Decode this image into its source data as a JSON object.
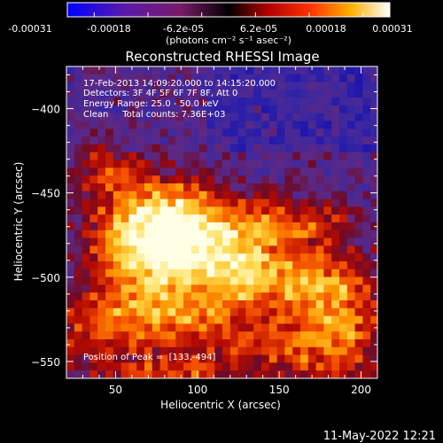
{
  "colorbar": {
    "tick_labels": [
      "-0.00031",
      "-0.00018",
      "-6.2e-05",
      "6.2e-05",
      "0.00018",
      "0.00031"
    ],
    "range": [
      -0.00031,
      0.00031
    ],
    "units": "(photons cm⁻² s⁻¹ asec⁻²)"
  },
  "chart_data": {
    "type": "heatmap",
    "title": "Reconstructed RHESSI Image",
    "xlabel": "Heliocentric X (arcsec)",
    "ylabel": "Heliocentric Y (arcsec)",
    "xlim": [
      20,
      210
    ],
    "ylim": [
      -560,
      -375
    ],
    "xticks": [
      50,
      100,
      150,
      200
    ],
    "yticks": [
      -400,
      -450,
      -500,
      -550
    ],
    "annotations": [
      "17-Feb-2013 14:09:20.000 to 14:15:20.000",
      "Detectors: 3F 4F 5F 6F 7F 8F, Att 0",
      "Energy Range: 25.0 - 50.0 keV",
      "Clean     Total counts: 7.36E+03"
    ],
    "peak_label": "Position of Peak =  [133,-494]",
    "peak_position": [
      133,
      -494
    ],
    "colormap": "red-temperature (blue negative to white positive)"
  },
  "timestamp": "11-May-2022 12:21"
}
